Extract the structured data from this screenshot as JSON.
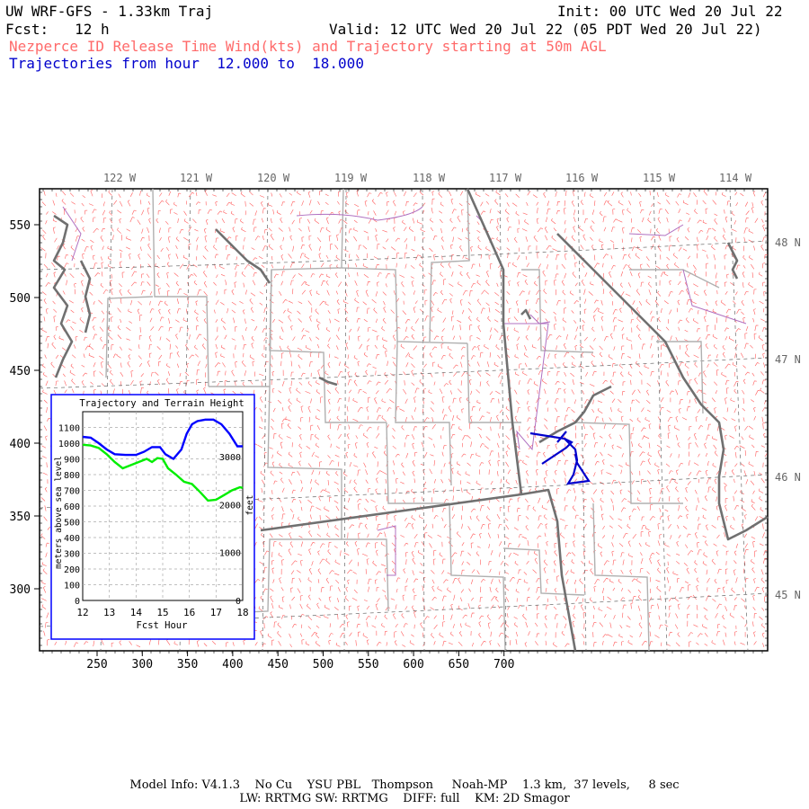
{
  "header": {
    "model_line": "UW WRF-GFS - 1.33km Traj",
    "init_line": "Init: 00 UTC Wed 20 Jul 22",
    "fcst_line": "Fcst:   12 h",
    "valid_line": "Valid: 12 UTC Wed 20 Jul 22 (05 PDT Wed 20 Jul 22)",
    "product_line": "Nezperce ID Release Time Wind(kts) and Trajectory starting at 50m AGL",
    "traj_line": "Trajectories from hour  12.000 to  18.000"
  },
  "map": {
    "lon_labels": [
      "122 W",
      "121 W",
      "120 W",
      "119 W",
      "118 W",
      "117 W",
      "116 W",
      "115 W",
      "114 W"
    ],
    "lat_labels": [
      "48 N",
      "47 N",
      "46 N",
      "45 N"
    ],
    "x_ticks": [
      "250",
      "300",
      "350",
      "400",
      "450",
      "500",
      "550",
      "600",
      "650",
      "700"
    ],
    "y_ticks": [
      "550",
      "500",
      "450",
      "400",
      "350",
      "300"
    ],
    "colors": {
      "wind_barbs": "#ff5a5a",
      "state_borders": "#707070",
      "county_lines": "#b0b0b0",
      "rivers": "#b070c0",
      "trajectory": "#0000cc"
    }
  },
  "inset": {
    "title": "Trajectory and Terrain Height",
    "xlabel": "Fcst Hour",
    "ylabel_left": "meters above sea level",
    "ylabel_right": "feet",
    "x_ticks": [
      "12",
      "13",
      "14",
      "15",
      "16",
      "17",
      "18"
    ],
    "y_ticks_m": [
      "0",
      "100",
      "200",
      "300",
      "400",
      "500",
      "600",
      "700",
      "800",
      "900",
      "1000",
      "1100"
    ],
    "y_ticks_ft": [
      "0",
      "1000",
      "2000",
      "3000"
    ]
  },
  "chart_data": {
    "type": "line",
    "title": "Trajectory and Terrain Height",
    "xlabel": "Fcst Hour",
    "ylabel": "meters above sea level",
    "xlim": [
      12,
      18
    ],
    "ylim": [
      0,
      1200
    ],
    "grid": true,
    "series": [
      {
        "color": "#0000ff",
        "x": [
          12.0,
          12.3,
          12.6,
          12.9,
          13.2,
          13.6,
          14.0,
          14.3,
          14.6,
          14.9,
          15.1,
          15.4,
          15.7,
          15.9,
          16.1,
          16.3,
          16.6,
          16.9,
          17.2,
          17.5,
          17.8,
          18.0
        ],
        "y": [
          1040,
          1035,
          1000,
          960,
          930,
          925,
          925,
          945,
          975,
          975,
          930,
          900,
          960,
          1060,
          1120,
          1140,
          1150,
          1150,
          1120,
          1060,
          980,
          980
        ]
      },
      {
        "color": "#00ee00",
        "x": [
          12.0,
          12.3,
          12.6,
          12.9,
          13.2,
          13.5,
          13.8,
          14.1,
          14.4,
          14.6,
          14.8,
          15.0,
          15.2,
          15.5,
          15.8,
          16.1,
          16.4,
          16.7,
          17.0,
          17.3,
          17.6,
          17.9,
          18.0
        ],
        "y": [
          990,
          985,
          970,
          930,
          880,
          840,
          860,
          880,
          900,
          880,
          905,
          900,
          840,
          800,
          755,
          740,
          690,
          635,
          640,
          670,
          700,
          720,
          715
        ]
      }
    ]
  },
  "footer": {
    "line1": "Model Info: V4.1.3    No Cu    YSU PBL   Thompson     Noah-MP    1.3 km,  37 levels,     8 sec",
    "line2": "LW: RRTMG SW: RRTMG    DIFF: full    KM: 2D Smagor"
  }
}
